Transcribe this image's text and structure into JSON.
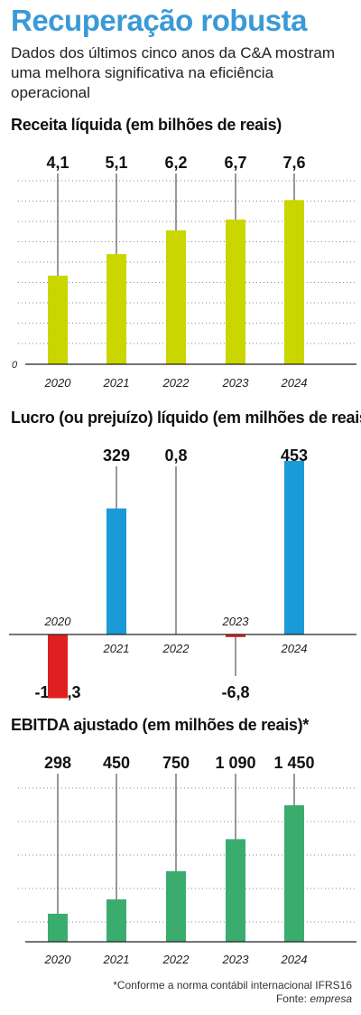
{
  "title": "Recuperação robusta",
  "subtitle": "Dados dos últimos cinco anos da C&A mostram uma melhora significativa na eficiência operacional",
  "colors": {
    "title": "#3a9ad6",
    "revenue_bar": "#c9d600",
    "profit_positive": "#1a9ad6",
    "profit_negative": "#e02020",
    "ebitda_bar": "#3aad6e"
  },
  "chart_data": [
    {
      "type": "bar",
      "title": "Receita líquida (em bilhões de reais)",
      "categories": [
        "2020",
        "2021",
        "2022",
        "2023",
        "2024"
      ],
      "values": [
        4.1,
        5.1,
        6.2,
        6.7,
        7.6
      ],
      "value_labels": [
        "4,1",
        "5,1",
        "6,2",
        "6,7",
        "7,6"
      ],
      "baseline_label": "0",
      "ylim": [
        0,
        8.2
      ],
      "grid": true
    },
    {
      "type": "bar",
      "title": "Lucro (ou prejuízo) líquido (em milhões de reais)",
      "categories": [
        "2020",
        "2021",
        "2022",
        "2023",
        "2024"
      ],
      "values": [
        -166.3,
        329,
        0.8,
        -6.8,
        453
      ],
      "value_labels": [
        "-166,3",
        "329",
        "0,8",
        "-6,8",
        "453"
      ],
      "ylim": [
        -166.3,
        453
      ],
      "grid": false
    },
    {
      "type": "bar",
      "title": "EBITDA ajustado (em milhões de reais)*",
      "categories": [
        "2020",
        "2021",
        "2022",
        "2023",
        "2024"
      ],
      "values": [
        298,
        450,
        750,
        1090,
        1450
      ],
      "value_labels": [
        "298",
        "450",
        "750",
        "1 090",
        "1 450"
      ],
      "ylim": [
        0,
        1660
      ],
      "grid": true
    }
  ],
  "footnote": "*Conforme a norma contábil internacional IFRS16",
  "source_label": "Fonte:",
  "source_value": "empresa"
}
